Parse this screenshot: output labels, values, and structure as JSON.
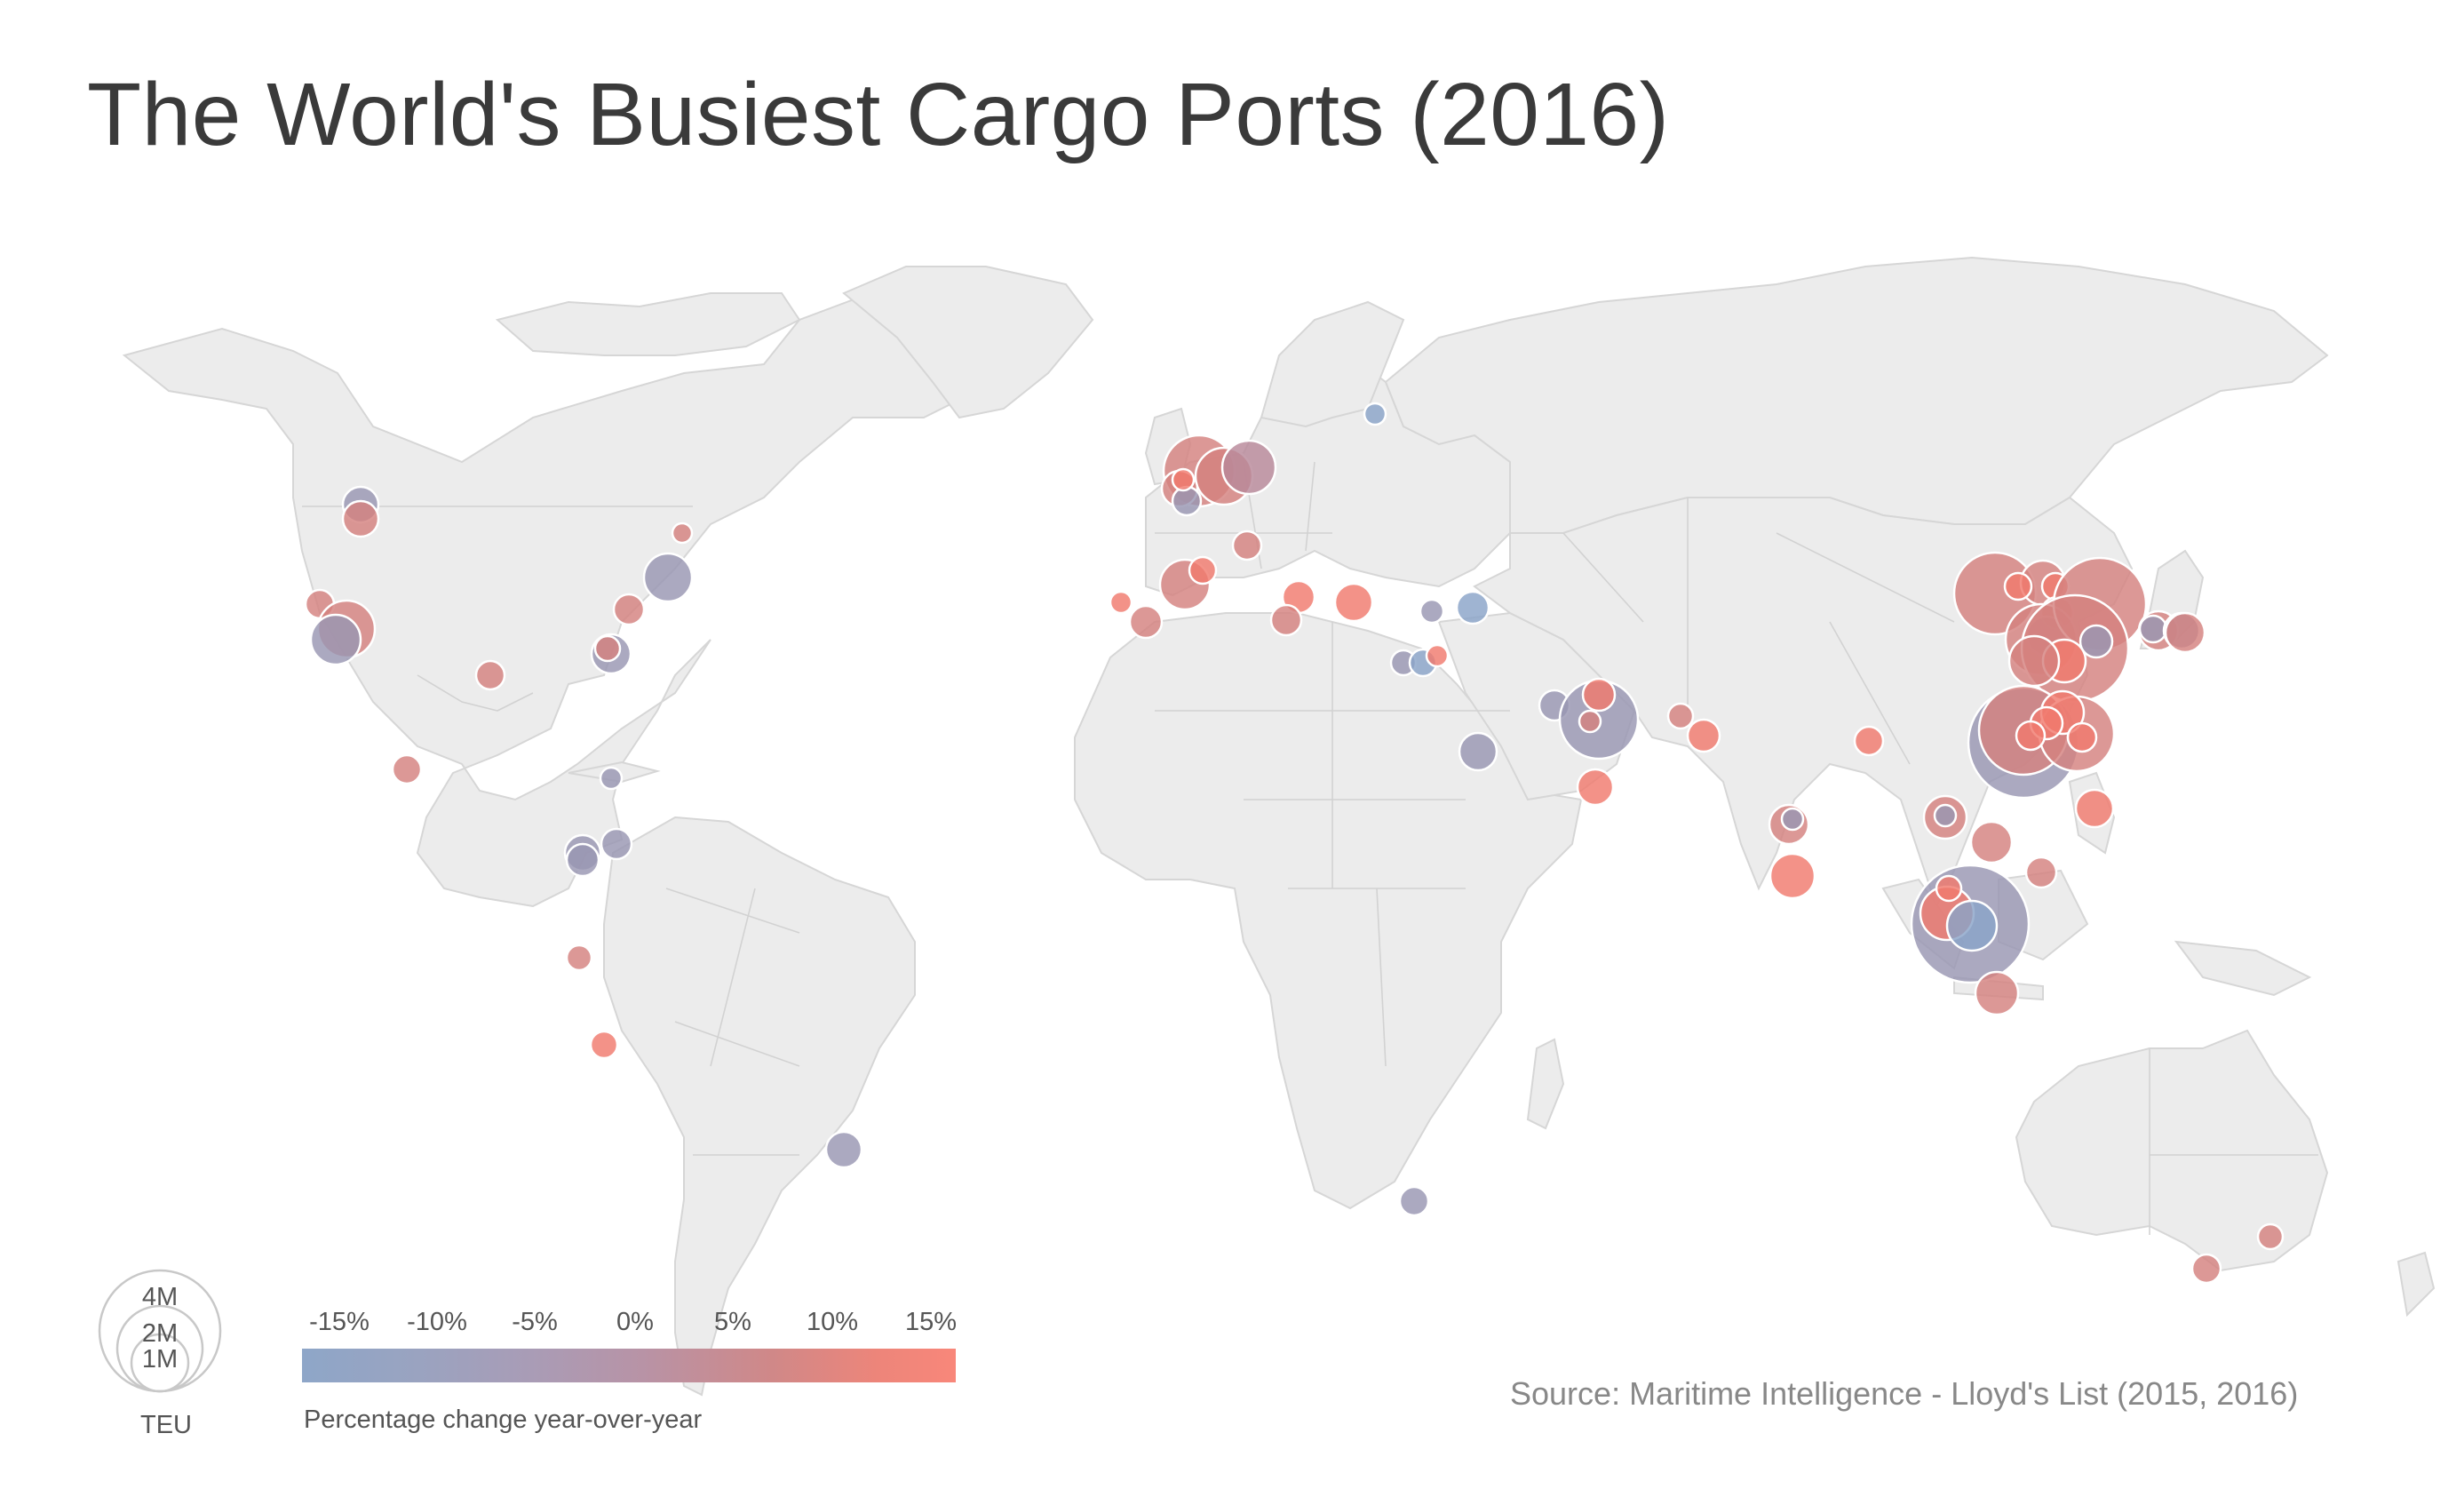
{
  "title": "The World's Busiest Cargo Ports (2016)",
  "source": "Source: Maritime Intelligence - Lloyd's List (2015, 2016)",
  "size_legend": {
    "labels": [
      "4M",
      "2M",
      "1M"
    ],
    "unit": "TEU"
  },
  "color_legend": {
    "ticks": [
      "-15%",
      "-10%",
      "-5%",
      "0%",
      "5%",
      "10%",
      "15%"
    ],
    "caption": "Percentage change year-over-year"
  },
  "colors": {
    "land": "#ececec",
    "border": "#d2d2d2",
    "negative": "#8aa3c8",
    "neutral": "#b593a6",
    "positive": "#f4857a"
  },
  "chart_data": {
    "type": "proportional-symbol map",
    "size_measure": "TEU",
    "color_measure": "Percentage change year-over-year",
    "color_range_pct": [
      -15,
      15
    ]
  }
}
